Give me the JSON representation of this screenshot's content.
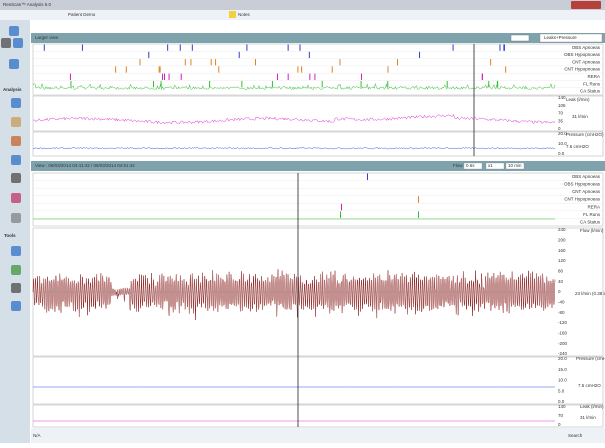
{
  "window": {
    "title": "ResScan™ Analysis 6.0"
  },
  "header": {
    "patient": "Patient Demo",
    "notes": "Notes"
  },
  "sidebar": {
    "analysis": "Analysis",
    "tools": "Tools"
  },
  "overview": {
    "title": "Larger view",
    "dropdown": "Leaks+Pressure",
    "event_labels": [
      "OBS Apnoeas",
      "OBS Hypopnoeas",
      "CNT Apnoeas",
      "CNT Hypopnoeas",
      "RERA",
      "FL Runs",
      "CA Status"
    ],
    "leak_label": "Leak (l/min)",
    "leak_value": "31 l/min",
    "leak_ticks": [
      "140",
      "105",
      "70",
      "35",
      "0"
    ],
    "pressure_label": "Pressure (cmH2O)",
    "pressure_value": "7.6 cmH2O",
    "pressure_ticks": [
      "20.0",
      "10.0",
      "0.0"
    ]
  },
  "detail": {
    "title": "View : 09/03/2014 04:41:42 / 09/03/2014 04:51:42",
    "flow_label": "Flow",
    "scale": "0.6s",
    "zoom": "x1",
    "span": "10 min",
    "event_labels": [
      "OBS Apnoeas",
      "OBS Hypopnoeas",
      "CNT Apnoeas",
      "CNT Hypopnoeas",
      "RERA",
      "FL Runs",
      "CA Status"
    ],
    "flow_axis": "Flow (l/min)",
    "flow_value": "23 l/min (0.38 l/s)",
    "flow_ticks": [
      "240",
      "200",
      "160",
      "120",
      "80",
      "40",
      "0",
      "-40",
      "-80",
      "-120",
      "-160",
      "-200",
      "-240"
    ],
    "pressure_axis": "Pressure (cmH2O)",
    "pressure_value": "7.5 cmH2O",
    "pressure_ticks": [
      "20.0",
      "15.0",
      "10.0",
      "5.0",
      "0.0"
    ],
    "leak_axis": "Leak (l/min)",
    "leak_value": "31 l/min",
    "leak_ticks": [
      "140",
      "70",
      "0"
    ]
  },
  "footer": {
    "left": "N/A",
    "right": "Search"
  }
}
